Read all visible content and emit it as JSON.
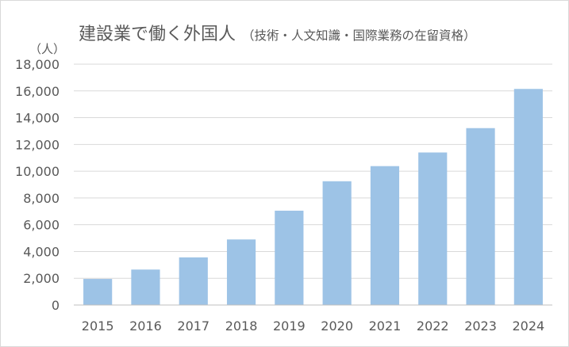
{
  "title": {
    "main": "建設業で働く外国人",
    "sub": "（技術・人文知識・国際業務の在留資格）"
  },
  "chart_data": {
    "type": "bar",
    "unit_label": "（人）",
    "categories": [
      "2015",
      "2016",
      "2017",
      "2018",
      "2019",
      "2020",
      "2021",
      "2022",
      "2023",
      "2024"
    ],
    "values": [
      1950,
      2650,
      3560,
      4900,
      7050,
      9250,
      10380,
      11400,
      13220,
      16150
    ],
    "ylim": [
      0,
      18000
    ],
    "yticks": [
      0,
      2000,
      4000,
      6000,
      8000,
      10000,
      12000,
      14000,
      16000,
      18000
    ],
    "ytick_labels": [
      "0",
      "2,000",
      "4,000",
      "6,000",
      "8,000",
      "10,000",
      "12,000",
      "14,000",
      "16,000",
      "18,000"
    ],
    "grid": true,
    "colors": {
      "bar": "#9dc3e6",
      "grid": "#d9d9d9",
      "axis": "#bfbfbf",
      "text": "#595959"
    }
  }
}
